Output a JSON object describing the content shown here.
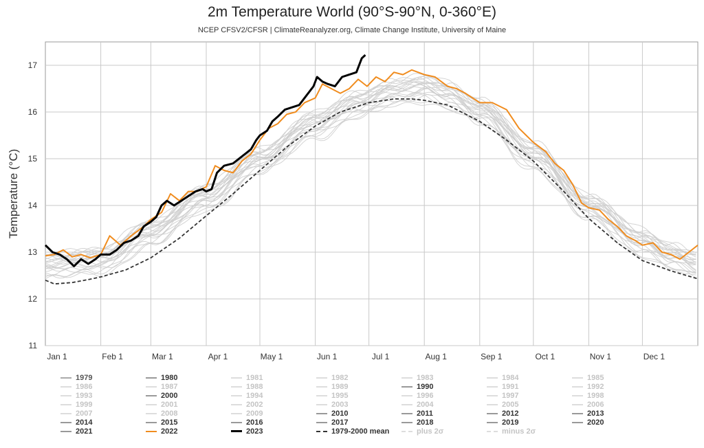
{
  "chart_data": {
    "type": "line",
    "title": "2m Temperature World (90°S-90°N, 0-360°E)",
    "subtitle": "NCEP CFSV2/CFSR | ClimateReanalyzer.org, Climate Change Institute, University of Maine",
    "xlabel": "",
    "ylabel": "Temperature (°C)",
    "ylim": [
      11,
      17.6
    ],
    "yticks": [
      11,
      12,
      13,
      14,
      15,
      16,
      17
    ],
    "xlim": [
      0,
      365
    ],
    "xticks": [
      {
        "day": 0,
        "label": "Jan 1"
      },
      {
        "day": 31,
        "label": "Feb 1"
      },
      {
        "day": 59,
        "label": "Mar 1"
      },
      {
        "day": 90,
        "label": "Apr 1"
      },
      {
        "day": 120,
        "label": "May 1"
      },
      {
        "day": 151,
        "label": "Jun 1"
      },
      {
        "day": 181,
        "label": "Jul 1"
      },
      {
        "day": 212,
        "label": "Aug 1"
      },
      {
        "day": 243,
        "label": "Sep 1"
      },
      {
        "day": 273,
        "label": "Oct 1"
      },
      {
        "day": 304,
        "label": "Nov 1"
      },
      {
        "day": 334,
        "label": "Dec 1"
      }
    ],
    "grid": true,
    "legend_position": "bottom",
    "background_years": {
      "color": "#cccccc",
      "base_points": [
        [
          0,
          12.75
        ],
        [
          31,
          12.85
        ],
        [
          59,
          13.45
        ],
        [
          90,
          14.2
        ],
        [
          120,
          15.0
        ],
        [
          151,
          15.75
        ],
        [
          175,
          16.2
        ],
        [
          195,
          16.45
        ],
        [
          212,
          16.55
        ],
        [
          225,
          16.4
        ],
        [
          243,
          16.05
        ],
        [
          273,
          15.1
        ],
        [
          304,
          14.0
        ],
        [
          334,
          13.25
        ],
        [
          350,
          12.95
        ],
        [
          365,
          12.75
        ]
      ],
      "offsets": [
        -0.32,
        -0.25,
        -0.2,
        -0.15,
        -0.1,
        -0.06,
        -0.02,
        0.02,
        0.05,
        0.08,
        0.11,
        0.14,
        0.17,
        0.2,
        0.23,
        -0.28,
        -0.12,
        0.0,
        0.1,
        0.18,
        -0.08,
        0.04
      ]
    },
    "series": [
      {
        "name": "1979-2000 mean",
        "color": "#333333",
        "dash": "5,3",
        "points": [
          [
            0,
            12.4
          ],
          [
            5,
            12.32
          ],
          [
            15,
            12.35
          ],
          [
            25,
            12.42
          ],
          [
            31,
            12.47
          ],
          [
            45,
            12.62
          ],
          [
            59,
            12.88
          ],
          [
            75,
            13.3
          ],
          [
            90,
            13.78
          ],
          [
            105,
            14.25
          ],
          [
            120,
            14.75
          ],
          [
            135,
            15.25
          ],
          [
            151,
            15.7
          ],
          [
            165,
            16.0
          ],
          [
            181,
            16.2
          ],
          [
            195,
            16.28
          ],
          [
            205,
            16.28
          ],
          [
            212,
            16.25
          ],
          [
            225,
            16.15
          ],
          [
            243,
            15.8
          ],
          [
            258,
            15.4
          ],
          [
            273,
            14.95
          ],
          [
            290,
            14.3
          ],
          [
            304,
            13.72
          ],
          [
            320,
            13.2
          ],
          [
            334,
            12.82
          ],
          [
            350,
            12.6
          ],
          [
            365,
            12.43
          ]
        ]
      },
      {
        "name": "2022",
        "color": "#f08c1e",
        "points": [
          [
            0,
            12.92
          ],
          [
            5,
            12.95
          ],
          [
            10,
            13.05
          ],
          [
            15,
            12.9
          ],
          [
            20,
            12.95
          ],
          [
            25,
            12.88
          ],
          [
            31,
            12.95
          ],
          [
            36,
            13.35
          ],
          [
            42,
            13.15
          ],
          [
            48,
            13.35
          ],
          [
            55,
            13.55
          ],
          [
            59,
            13.7
          ],
          [
            65,
            13.85
          ],
          [
            70,
            14.25
          ],
          [
            75,
            14.1
          ],
          [
            80,
            14.3
          ],
          [
            85,
            14.3
          ],
          [
            90,
            14.4
          ],
          [
            95,
            14.85
          ],
          [
            100,
            14.75
          ],
          [
            105,
            14.7
          ],
          [
            110,
            14.95
          ],
          [
            115,
            15.1
          ],
          [
            120,
            15.4
          ],
          [
            125,
            15.65
          ],
          [
            130,
            15.75
          ],
          [
            135,
            15.95
          ],
          [
            140,
            16.0
          ],
          [
            145,
            16.2
          ],
          [
            151,
            16.3
          ],
          [
            155,
            16.6
          ],
          [
            160,
            16.5
          ],
          [
            165,
            16.4
          ],
          [
            170,
            16.5
          ],
          [
            175,
            16.7
          ],
          [
            180,
            16.55
          ],
          [
            185,
            16.75
          ],
          [
            190,
            16.65
          ],
          [
            195,
            16.85
          ],
          [
            200,
            16.8
          ],
          [
            205,
            16.9
          ],
          [
            212,
            16.8
          ],
          [
            218,
            16.75
          ],
          [
            225,
            16.55
          ],
          [
            230,
            16.5
          ],
          [
            235,
            16.4
          ],
          [
            243,
            16.2
          ],
          [
            250,
            16.2
          ],
          [
            258,
            16.05
          ],
          [
            265,
            15.65
          ],
          [
            273,
            15.35
          ],
          [
            280,
            15.15
          ],
          [
            285,
            14.9
          ],
          [
            290,
            14.75
          ],
          [
            295,
            14.45
          ],
          [
            300,
            14.05
          ],
          [
            304,
            13.95
          ],
          [
            310,
            13.9
          ],
          [
            315,
            13.7
          ],
          [
            320,
            13.55
          ],
          [
            325,
            13.35
          ],
          [
            330,
            13.25
          ],
          [
            334,
            13.15
          ],
          [
            340,
            13.2
          ],
          [
            345,
            13.0
          ],
          [
            350,
            12.95
          ],
          [
            355,
            12.85
          ],
          [
            360,
            13.0
          ],
          [
            365,
            13.15
          ]
        ]
      },
      {
        "name": "2023",
        "color": "#000000",
        "points": [
          [
            0,
            13.15
          ],
          [
            4,
            13.0
          ],
          [
            8,
            12.95
          ],
          [
            12,
            12.85
          ],
          [
            16,
            12.7
          ],
          [
            20,
            12.85
          ],
          [
            24,
            12.75
          ],
          [
            28,
            12.85
          ],
          [
            31,
            12.95
          ],
          [
            36,
            12.95
          ],
          [
            40,
            13.05
          ],
          [
            44,
            13.2
          ],
          [
            48,
            13.25
          ],
          [
            52,
            13.35
          ],
          [
            55,
            13.55
          ],
          [
            59,
            13.65
          ],
          [
            62,
            13.75
          ],
          [
            65,
            14.0
          ],
          [
            68,
            14.1
          ],
          [
            72,
            14.0
          ],
          [
            76,
            14.1
          ],
          [
            80,
            14.2
          ],
          [
            84,
            14.3
          ],
          [
            88,
            14.35
          ],
          [
            90,
            14.3
          ],
          [
            93,
            14.35
          ],
          [
            96,
            14.7
          ],
          [
            100,
            14.85
          ],
          [
            105,
            14.9
          ],
          [
            110,
            15.05
          ],
          [
            115,
            15.2
          ],
          [
            118,
            15.4
          ],
          [
            120,
            15.5
          ],
          [
            124,
            15.6
          ],
          [
            127,
            15.8
          ],
          [
            130,
            15.9
          ],
          [
            134,
            16.05
          ],
          [
            138,
            16.1
          ],
          [
            142,
            16.15
          ],
          [
            146,
            16.35
          ],
          [
            150,
            16.55
          ],
          [
            152,
            16.75
          ],
          [
            155,
            16.65
          ],
          [
            158,
            16.6
          ],
          [
            162,
            16.55
          ],
          [
            166,
            16.75
          ],
          [
            170,
            16.8
          ],
          [
            174,
            16.85
          ],
          [
            177,
            17.15
          ],
          [
            179,
            17.22
          ]
        ]
      }
    ]
  },
  "legend": [
    {
      "label": "1979",
      "status": "dim"
    },
    {
      "label": "1980",
      "status": "dark"
    },
    {
      "label": "1981",
      "status": "faint"
    },
    {
      "label": "1982",
      "status": "faint"
    },
    {
      "label": "1983",
      "status": "faint"
    },
    {
      "label": "1984",
      "status": "faint"
    },
    {
      "label": "1985",
      "status": "faint"
    },
    {
      "label": "1986",
      "status": "faint"
    },
    {
      "label": "1987",
      "status": "faint"
    },
    {
      "label": "1988",
      "status": "faint"
    },
    {
      "label": "1989",
      "status": "faint"
    },
    {
      "label": "1990",
      "status": "dark"
    },
    {
      "label": "1991",
      "status": "faint"
    },
    {
      "label": "1992",
      "status": "faint"
    },
    {
      "label": "1993",
      "status": "faint"
    },
    {
      "label": "2000",
      "status": "dark"
    },
    {
      "label": "1994",
      "status": "faint"
    },
    {
      "label": "1995",
      "status": "faint"
    },
    {
      "label": "1996",
      "status": "faint"
    },
    {
      "label": "1997",
      "status": "faint"
    },
    {
      "label": "1998",
      "status": "faint"
    },
    {
      "label": "1999",
      "status": "faint"
    },
    {
      "label": "2001",
      "status": "faint"
    },
    {
      "label": "2002",
      "status": "faint"
    },
    {
      "label": "2003",
      "status": "faint"
    },
    {
      "label": "2004",
      "status": "faint"
    },
    {
      "label": "2005",
      "status": "faint"
    },
    {
      "label": "2006",
      "status": "faint"
    },
    {
      "label": "2007",
      "status": "faint"
    },
    {
      "label": "2008",
      "status": "faint"
    },
    {
      "label": "2009",
      "status": "faint"
    },
    {
      "label": "2010",
      "status": "dark"
    },
    {
      "label": "2011",
      "status": "dark"
    },
    {
      "label": "2012",
      "status": "dark"
    },
    {
      "label": "2013",
      "status": "dark"
    },
    {
      "label": "2014",
      "status": "dark"
    },
    {
      "label": "2015",
      "status": "dark"
    },
    {
      "label": "2016",
      "status": "dark"
    },
    {
      "label": "2017",
      "status": "dark"
    },
    {
      "label": "2018",
      "status": "dark"
    },
    {
      "label": "2019",
      "status": "dark"
    },
    {
      "label": "2020",
      "status": "dark"
    },
    {
      "label": "2021",
      "status": "dark"
    },
    {
      "label": "2022",
      "status": "dark",
      "color": "#f08c1e"
    },
    {
      "label": "2023",
      "status": "dark",
      "color": "#000000"
    },
    {
      "label": "1979-2000 mean",
      "status": "dark",
      "color": "#333333",
      "dash": "dashed"
    },
    {
      "label": "plus 2σ",
      "status": "faint",
      "dash": "dashed"
    },
    {
      "label": "minus 2σ",
      "status": "faint",
      "dash": "dashed"
    }
  ]
}
